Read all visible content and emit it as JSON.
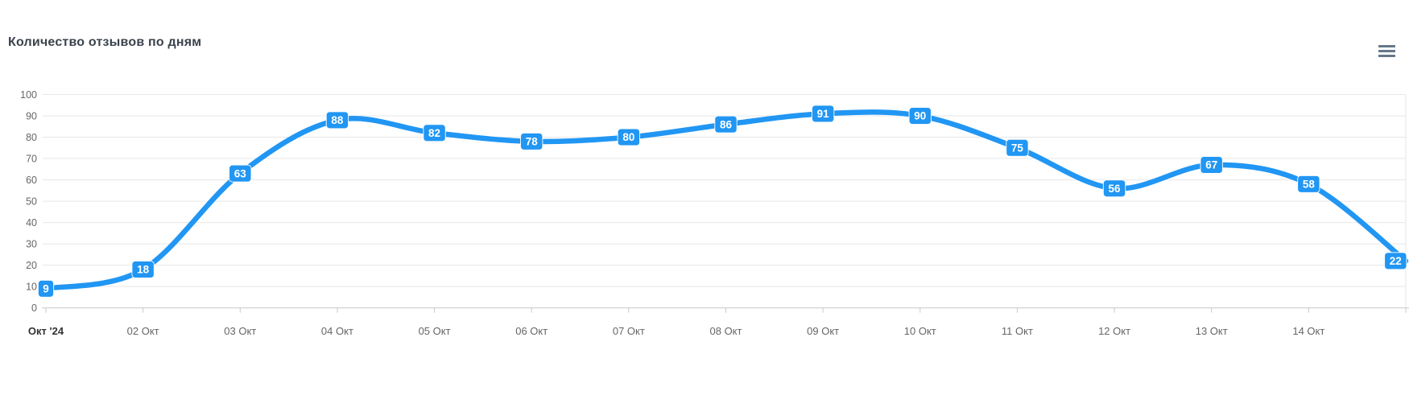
{
  "header": {
    "title": "Количество отзывов по дням"
  },
  "chart_data": {
    "type": "line",
    "title": "Количество отзывов по дням",
    "values": [
      9,
      18,
      63,
      88,
      82,
      78,
      80,
      86,
      91,
      90,
      75,
      56,
      67,
      58,
      22
    ],
    "data_labels": [
      "9",
      "18",
      "63",
      "88",
      "82",
      "78",
      "80",
      "86",
      "91",
      "90",
      "75",
      "56",
      "67",
      "58",
      "22"
    ],
    "x_axis": {
      "tick_labels": [
        "Окт '24",
        "02 Окт",
        "03 Окт",
        "04 Окт",
        "05 Окт",
        "06 Окт",
        "07 Окт",
        "08 Окт",
        "09 Окт",
        "10 Окт",
        "11 Окт",
        "12 Окт",
        "13 Окт",
        "14 Окт"
      ],
      "first_label_bold": true
    },
    "y_axis": {
      "ticks": [
        0,
        10,
        20,
        30,
        40,
        50,
        60,
        70,
        80,
        90,
        100
      ],
      "range": [
        0,
        100
      ]
    },
    "grid": "horizontal",
    "legend": "none",
    "smooth": true
  },
  "colors": {
    "series": "#2196f3",
    "grid": "#e7e7e7",
    "axis": "#c9c9c9",
    "tick_text": "#666666",
    "first_tick_text": "#333333",
    "title_text": "#3b434c",
    "menu_icon": "#66788a",
    "data_label_text": "#ffffff"
  }
}
